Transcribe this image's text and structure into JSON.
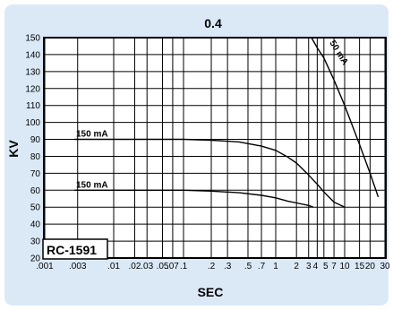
{
  "chart_data": {
    "type": "line",
    "title": "0.4",
    "xlabel": "SEC",
    "ylabel": "KV",
    "x_scale": "log",
    "ylim": [
      20,
      150
    ],
    "grid": true,
    "y_ticks": [
      "20",
      "30",
      "40",
      "50",
      "60",
      "70",
      "80",
      "90",
      "100",
      "110",
      "120",
      "130",
      "140",
      "150"
    ],
    "x_ticks": [
      {
        "value": 0.001,
        "label": ".001"
      },
      {
        "value": 0.003,
        "label": ".003"
      },
      {
        "value": 0.01,
        "label": ".01"
      },
      {
        "value": 0.02,
        "label": ".02"
      },
      {
        "value": 0.03,
        "label": ".03"
      },
      {
        "value": 0.05,
        "label": ".05"
      },
      {
        "value": 0.07,
        "label": ".07"
      },
      {
        "value": 0.1,
        "label": ".1"
      },
      {
        "value": 0.2,
        "label": ".2"
      },
      {
        "value": 0.3,
        "label": ".3"
      },
      {
        "value": 0.5,
        "label": ".5"
      },
      {
        "value": 0.7,
        "label": ".7"
      },
      {
        "value": 1,
        "label": "1"
      },
      {
        "value": 2,
        "label": "2"
      },
      {
        "value": 3,
        "label": "3"
      },
      {
        "value": 4,
        "label": "4"
      },
      {
        "value": 5,
        "label": "5"
      },
      {
        "value": 7,
        "label": "7"
      },
      {
        "value": 10,
        "label": "10"
      },
      {
        "value": 15,
        "label": "15"
      },
      {
        "value": 20,
        "label": "20"
      },
      {
        "value": 30,
        "label": "30"
      }
    ],
    "series": [
      {
        "name": "150 mA",
        "x": [
          0.0027,
          0.1,
          0.2,
          0.4,
          0.7,
          1,
          1.5,
          2,
          3,
          4,
          5,
          7,
          10
        ],
        "y": [
          90,
          90,
          89.5,
          88.5,
          86,
          83.5,
          79.5,
          76,
          69,
          63.5,
          59,
          53,
          50
        ]
      },
      {
        "name": "150 mA",
        "x": [
          0.0027,
          0.1,
          0.2,
          0.4,
          0.7,
          1,
          1.5,
          2,
          3,
          3.5
        ],
        "y": [
          60,
          60,
          59.5,
          58.5,
          57,
          55.5,
          53.5,
          52.5,
          51,
          50
        ]
      },
      {
        "name": "50 mA",
        "x": [
          3.3,
          4,
          5,
          7,
          10,
          15,
          20,
          25
        ],
        "y": [
          150,
          144,
          138,
          125,
          110,
          87,
          70,
          56
        ]
      }
    ],
    "annotations": [
      "RC-1591"
    ]
  }
}
